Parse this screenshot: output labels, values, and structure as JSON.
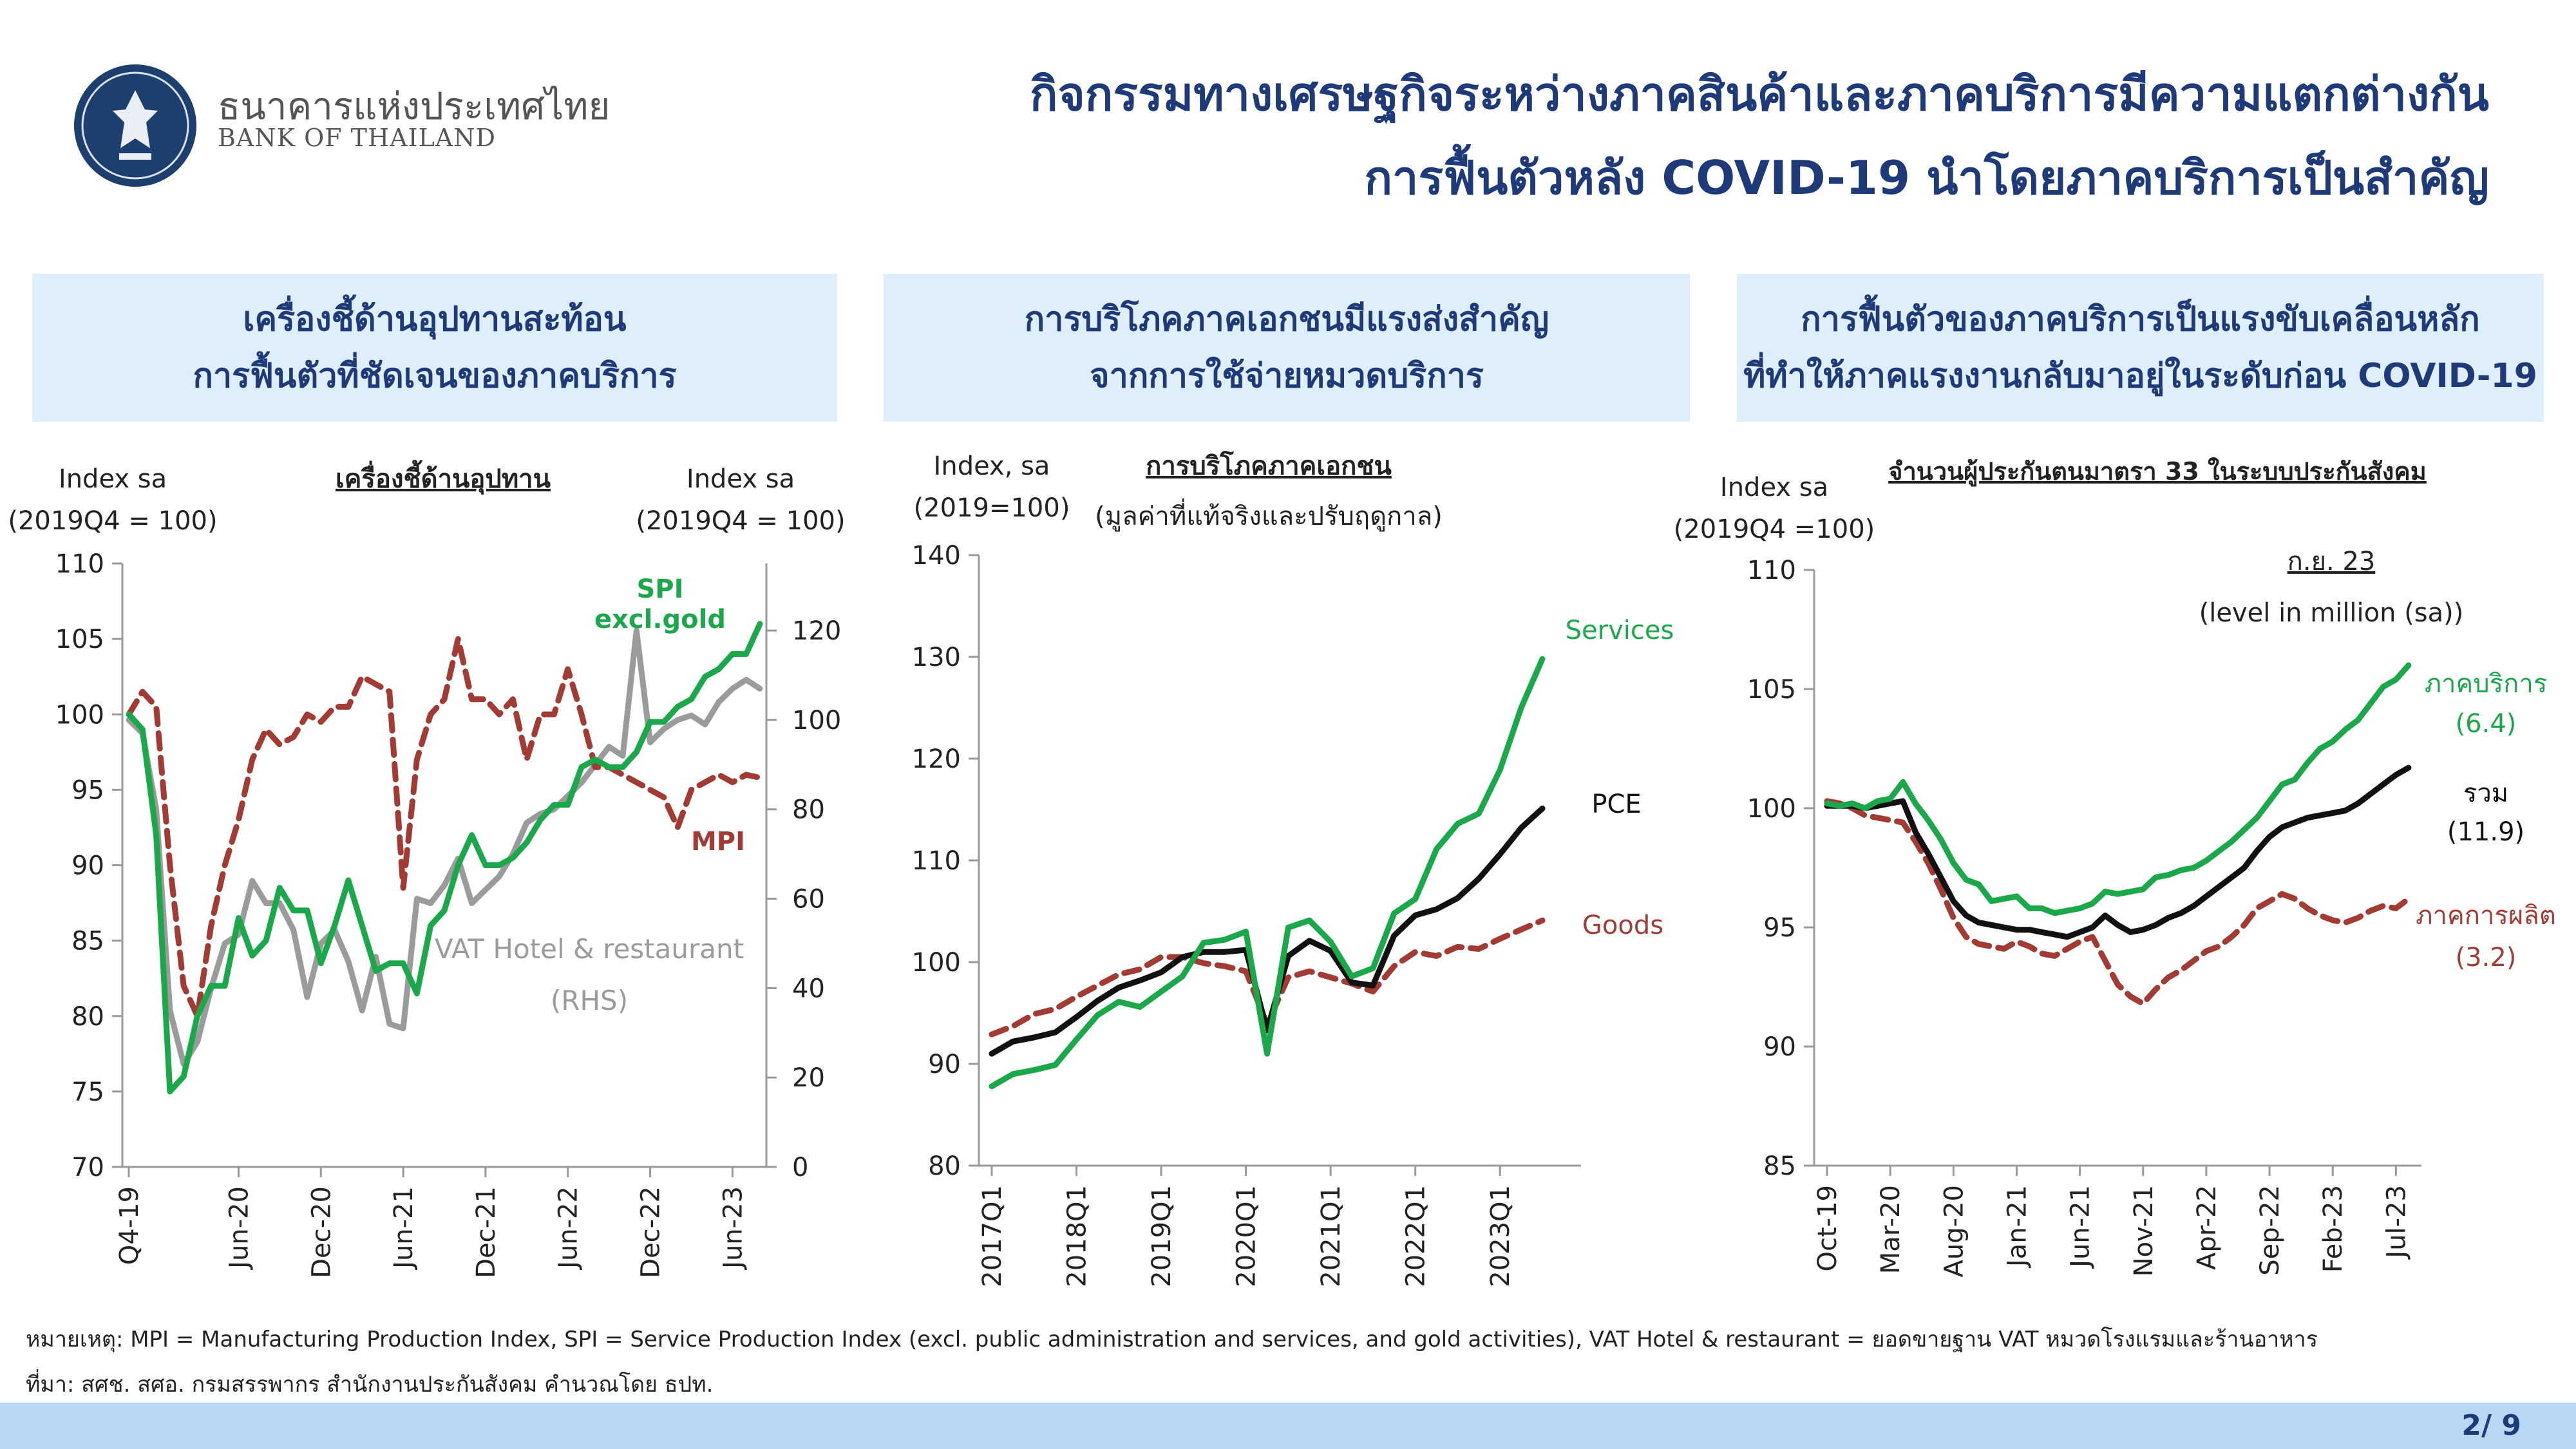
{
  "header": {
    "bank_name_th": "ธนาคารแห่งประเทศไทย",
    "bank_name_en": "BANK OF THAILAND",
    "title_line1": "กิจกรรมทางเศรษฐกิจระหว่างภาคสินค้าและภาคบริการมีความแตกต่างกัน",
    "title_line2": "การฟื้นตัวหลัง COVID-19 นำโดยภาคบริการเป็นสำคัญ"
  },
  "panels": [
    {
      "line1": "เครื่องชี้ด้านอุปทานสะท้อน",
      "line2": "การฟื้นตัวที่ชัดเจนของภาคบริการ"
    },
    {
      "line1": "การบริโภคภาคเอกชนมีแรงส่งสำคัญ",
      "line2": "จากการใช้จ่ายหมวดบริการ"
    },
    {
      "line1": "การฟื้นตัวของภาคบริการเป็นแรงขับเคลื่อนหลัก",
      "line2": "ที่ทำให้ภาคแรงงานกลับมาอยู่ในระดับก่อน COVID-19"
    }
  ],
  "colors": {
    "green": "#1aa84a",
    "red": "#a33b35",
    "gray": "#9b9b9b",
    "black": "#111111",
    "navy": "#1e3a78"
  },
  "chart_data": [
    {
      "type": "line",
      "title": "เครื่องชี้ด้านอุปทาน",
      "ylabel_left": "Index sa",
      "ylabel_left_sub": "(2019Q4 = 100)",
      "ylabel_right": "Index sa",
      "ylabel_right_sub": "(2019Q4 = 100)",
      "ylim_left": [
        70,
        110
      ],
      "yticks_left": [
        "70",
        "75",
        "80",
        "85",
        "90",
        "95",
        "100",
        "105",
        "110"
      ],
      "ylim_right": [
        0,
        135
      ],
      "yticks_right": [
        "0",
        "20",
        "40",
        "60",
        "80",
        "100",
        "120"
      ],
      "x_tick_labels": [
        "Q4-19",
        "Jun-20",
        "Dec-20",
        "Jun-21",
        "Dec-21",
        "Jun-22",
        "Dec-22",
        "Jun-23"
      ],
      "x_tick_months": [
        0,
        8,
        14,
        20,
        26,
        32,
        38,
        44
      ],
      "series": [
        {
          "name": "SPI excl.gold",
          "label_line1": "SPI",
          "label_line2": "excl.gold",
          "axis": "left",
          "style": "solid",
          "color": "green",
          "values": [
            100,
            99,
            92,
            75,
            76,
            80,
            82,
            82,
            86.5,
            84,
            85,
            88.5,
            87,
            87,
            83.5,
            86,
            89,
            86,
            83,
            83.5,
            83.5,
            81.5,
            86,
            87,
            90,
            92,
            90,
            90,
            90.5,
            91.5,
            93,
            94,
            94,
            96.5,
            97,
            96.5,
            96.5,
            97.5,
            99.5,
            99.5,
            100.5,
            101,
            102.5,
            103,
            104,
            104,
            106
          ]
        },
        {
          "name": "MPI",
          "axis": "left",
          "style": "dashed",
          "color": "red",
          "values": [
            100,
            101.5,
            100.5,
            90,
            82,
            80,
            86,
            90,
            93,
            97,
            99,
            98,
            98.5,
            100,
            99.5,
            100.5,
            100.5,
            102.5,
            102,
            101.5,
            88.5,
            97,
            100,
            101,
            105,
            101,
            101,
            100,
            101,
            97,
            100,
            100,
            103,
            100,
            96.5,
            96.5,
            96,
            95.5,
            95,
            94.5,
            92.5,
            95,
            95.5,
            96,
            95.5,
            96,
            95.8
          ]
        },
        {
          "name": "VAT Hotel & restaurant",
          "name_line2": "(RHS)",
          "axis": "right",
          "style": "solid",
          "color": "gray",
          "values": [
            100,
            97,
            80,
            35,
            23,
            28,
            40,
            50,
            52,
            64,
            59,
            59,
            53,
            38,
            50,
            53,
            46,
            35,
            47,
            32,
            31,
            60,
            59,
            63,
            69,
            59,
            62,
            65,
            70,
            77,
            79,
            80,
            83,
            86,
            90,
            94,
            92,
            120,
            95,
            98,
            100,
            101,
            99,
            104,
            107,
            109,
            107
          ]
        }
      ]
    },
    {
      "type": "line",
      "title": "การบริโภคภาคเอกชน",
      "subtitle": "(มูลค่าที่แท้จริงและปรับฤดูกาล)",
      "ylabel": "Index, sa",
      "ylabel_sub": "(2019=100)",
      "ylim": [
        80,
        140
      ],
      "yticks": [
        "80",
        "90",
        "100",
        "110",
        "120",
        "130",
        "140"
      ],
      "x_tick_labels": [
        "2017Q1",
        "2018Q1",
        "2019Q1",
        "2020Q1",
        "2021Q1",
        "2022Q1",
        "2023Q1"
      ],
      "x_tick_quarters": [
        0,
        4,
        8,
        12,
        16,
        20,
        24
      ],
      "series": [
        {
          "name": "Services",
          "style": "solid",
          "color": "green",
          "values": [
            87.8,
            89,
            89.4,
            89.9,
            92.4,
            94.8,
            96.1,
            95.6,
            97.1,
            98.6,
            101.9,
            102.2,
            103,
            91,
            103.4,
            104.1,
            102,
            98.6,
            99.4,
            104.8,
            106.2,
            111.1,
            113.6,
            114.6,
            118.9,
            125,
            129.8
          ]
        },
        {
          "name": "PCE",
          "style": "solid",
          "color": "black",
          "values": [
            91,
            92.2,
            92.6,
            93.1,
            94.6,
            96.2,
            97.5,
            98.2,
            99,
            100.5,
            101,
            101,
            101.2,
            93.3,
            100.6,
            102.1,
            101.1,
            98,
            97.7,
            102.6,
            104.6,
            105.2,
            106.3,
            108.2,
            110.6,
            113.2,
            115.1
          ]
        },
        {
          "name": "Goods",
          "style": "dashed",
          "color": "red",
          "values": [
            92.9,
            93.7,
            94.9,
            95.4,
            96.6,
            97.7,
            98.8,
            99.3,
            100.5,
            100.5,
            99.9,
            99.6,
            99.1,
            93.9,
            98.5,
            99.1,
            98.5,
            97.9,
            97.1,
            99.6,
            101,
            100.6,
            101.5,
            101.3,
            102.3,
            103.2,
            104.1
          ]
        }
      ]
    },
    {
      "type": "line",
      "title": "จำนวนผู้ประกันตนมาตรา 33 ในระบบประกันสังคม",
      "ylabel": "Index sa",
      "ylabel_sub": "(2019Q4 =100)",
      "ylim": [
        85,
        110
      ],
      "yticks": [
        "85",
        "90",
        "95",
        "100",
        "105",
        "110"
      ],
      "x_tick_labels": [
        "Oct-19",
        "Mar-20",
        "Aug-20",
        "Jan-21",
        "Jun-21",
        "Nov-21",
        "Apr-22",
        "Sep-22",
        "Feb-23",
        "Jul-23"
      ],
      "x_tick_months": [
        0,
        5,
        10,
        15,
        20,
        25,
        30,
        35,
        40,
        45
      ],
      "annotation_line1": "ก.ย. 23",
      "annotation_line2": "(level in million (sa))",
      "series": [
        {
          "name": "ภาคบริการ",
          "value_label": "(6.4)",
          "style": "solid",
          "color": "green",
          "values": [
            100.2,
            100.1,
            100.2,
            100,
            100.3,
            100.4,
            101.1,
            100.2,
            99.5,
            98.7,
            97.7,
            97,
            96.8,
            96.1,
            96.2,
            96.3,
            95.8,
            95.8,
            95.6,
            95.7,
            95.8,
            96,
            96.5,
            96.4,
            96.5,
            96.6,
            97.1,
            97.2,
            97.4,
            97.5,
            97.8,
            98.2,
            98.6,
            99.1,
            99.6,
            100.3,
            101,
            101.2,
            101.9,
            102.5,
            102.8,
            103.3,
            103.7,
            104.4,
            105.1,
            105.4,
            106
          ]
        },
        {
          "name": "รวม",
          "value_label": "(11.9)",
          "style": "solid",
          "color": "black",
          "values": [
            100.1,
            100.1,
            100.1,
            100,
            100.1,
            100.2,
            100.3,
            99,
            98.1,
            97.1,
            96.1,
            95.5,
            95.2,
            95.1,
            95,
            94.9,
            94.9,
            94.8,
            94.7,
            94.6,
            94.8,
            95,
            95.5,
            95.1,
            94.8,
            94.9,
            95.1,
            95.4,
            95.6,
            95.9,
            96.3,
            96.7,
            97.1,
            97.5,
            98.2,
            98.8,
            99.2,
            99.4,
            99.6,
            99.7,
            99.8,
            99.9,
            100.2,
            100.6,
            101,
            101.4,
            101.7
          ]
        },
        {
          "name": "ภาคการผลิต",
          "value_label": "(3.2)",
          "style": "dashed",
          "color": "red",
          "values": [
            100.3,
            100.2,
            100,
            99.7,
            99.6,
            99.5,
            99.4,
            98.6,
            97.7,
            96.6,
            95.4,
            94.6,
            94.3,
            94.2,
            94.1,
            94.4,
            94.2,
            93.9,
            93.8,
            94.1,
            94.4,
            94.6,
            93.6,
            92.6,
            92.1,
            91.8,
            92.4,
            92.9,
            93.2,
            93.6,
            94,
            94.2,
            94.6,
            95.1,
            95.8,
            96.1,
            96.4,
            96.2,
            95.8,
            95.5,
            95.3,
            95.2,
            95.4,
            95.7,
            95.9,
            95.8,
            96.2
          ]
        }
      ]
    }
  ],
  "notes": {
    "line1": "หมายเหตุ: MPI = Manufacturing Production Index, SPI = Service Production Index (excl. public administration and services, and gold activities), VAT Hotel & restaurant  = ยอดขายฐาน VAT หมวดโรงแรมและร้านอาหาร",
    "line2": "ที่มา: สศช. สศอ. กรมสรรพากร สำนักงานประกันสังคม คำนวณโดย ธปท."
  },
  "page_number": "2/ 9"
}
